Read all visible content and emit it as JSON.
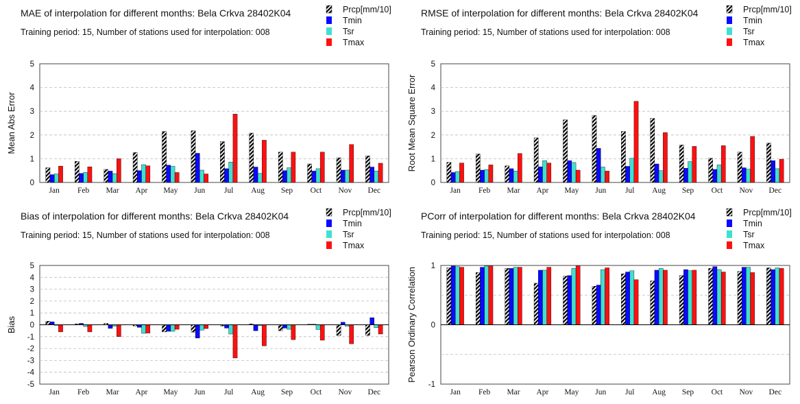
{
  "colors": {
    "Prcp[mm/10]": "hatch",
    "Tmin": "#0a0aff",
    "Tsr": "#40e0d0",
    "Tmax": "#ff1010"
  },
  "chart_data": [
    {
      "type": "bar",
      "title": "MAE of interpolation for different months: Bela Crkva  28402K04",
      "subtitle": "Training period: 15, Number of stations used for interpolation: 008",
      "ylabel": "Mean Abs Error",
      "ylim": [
        0,
        5
      ],
      "yticks": [
        "0",
        "1",
        "2",
        "3",
        "4",
        "5"
      ],
      "grid": true,
      "legend": "top-right",
      "categories": [
        "Jan",
        "Feb",
        "Mar",
        "Apr",
        "May",
        "Jun",
        "Jul",
        "Aug",
        "Sep",
        "Oct",
        "Nov",
        "Dec"
      ],
      "series": [
        {
          "name": "Prcp[mm/10]",
          "values": [
            0.62,
            0.89,
            0.55,
            1.26,
            2.15,
            2.18,
            1.72,
            2.08,
            1.28,
            0.78,
            1.04,
            1.12
          ]
        },
        {
          "name": "Tmin",
          "values": [
            0.33,
            0.38,
            0.48,
            0.5,
            0.73,
            1.23,
            0.58,
            0.65,
            0.5,
            0.48,
            0.52,
            0.65
          ]
        },
        {
          "name": "Tsr",
          "values": [
            0.36,
            0.42,
            0.37,
            0.75,
            0.68,
            0.52,
            0.86,
            0.38,
            0.62,
            0.58,
            0.52,
            0.48
          ]
        },
        {
          "name": "Tmax",
          "values": [
            0.69,
            0.66,
            1.0,
            0.7,
            0.42,
            0.36,
            2.88,
            1.78,
            1.28,
            1.28,
            1.6,
            0.81
          ]
        }
      ]
    },
    {
      "type": "bar",
      "title": "RMSE of interpolation for different months: Bela Crkva  28402K04",
      "subtitle": "Training period: 15, Number of stations used for interpolation: 008",
      "ylabel": "Root Mean Square Error",
      "ylim": [
        0,
        5
      ],
      "yticks": [
        "0",
        "1",
        "2",
        "3",
        "4",
        "5"
      ],
      "grid": true,
      "legend": "top-right",
      "categories": [
        "Jan",
        "Feb",
        "Mar",
        "Apr",
        "May",
        "Jun",
        "Jul",
        "Aug",
        "Sep",
        "Oct",
        "Nov",
        "Dec"
      ],
      "series": [
        {
          "name": "Prcp[mm/10]",
          "values": [
            0.85,
            1.2,
            0.7,
            1.88,
            2.64,
            2.82,
            2.15,
            2.7,
            1.58,
            1.02,
            1.28,
            1.66
          ]
        },
        {
          "name": "Tmin",
          "values": [
            0.42,
            0.52,
            0.58,
            0.66,
            0.92,
            1.44,
            0.68,
            0.78,
            0.6,
            0.55,
            0.62,
            0.92
          ]
        },
        {
          "name": "Tsr",
          "values": [
            0.46,
            0.54,
            0.48,
            0.92,
            0.84,
            0.65,
            1.02,
            0.5,
            0.88,
            0.74,
            0.56,
            0.58
          ]
        },
        {
          "name": "Tmax",
          "values": [
            0.82,
            0.74,
            1.22,
            0.82,
            0.52,
            0.48,
            3.42,
            2.1,
            1.52,
            1.55,
            1.94,
            0.98
          ]
        }
      ]
    },
    {
      "type": "bar",
      "title": "Bias of interpolation for different months: Bela Crkva  28402K04",
      "subtitle": "Training period: 15, Number of stations used for interpolation: 008",
      "ylabel": "Bias",
      "ylim": [
        -5,
        5
      ],
      "yticks": [
        "-5",
        "-4",
        "-3",
        "-2",
        "-1",
        "0",
        "1",
        "2",
        "3",
        "4",
        "5"
      ],
      "grid": true,
      "legend": "top-right",
      "categories": [
        "Jan",
        "Feb",
        "Mar",
        "Apr",
        "May",
        "Jun",
        "Jul",
        "Aug",
        "Sep",
        "Oct",
        "Nov",
        "Dec"
      ],
      "series": [
        {
          "name": "Prcp[mm/10]",
          "values": [
            0.3,
            0.08,
            0.12,
            -0.1,
            -0.6,
            -0.62,
            -0.1,
            0.08,
            -0.5,
            0.05,
            -0.9,
            -0.9
          ]
        },
        {
          "name": "Tmin",
          "values": [
            0.25,
            0.12,
            -0.3,
            -0.22,
            -0.55,
            -1.12,
            -0.28,
            -0.5,
            -0.28,
            0.05,
            0.22,
            0.6
          ]
        },
        {
          "name": "Tsr",
          "values": [
            -0.05,
            -0.15,
            -0.12,
            -0.72,
            -0.55,
            -0.45,
            -0.78,
            -0.08,
            -0.38,
            -0.4,
            -0.12,
            -0.25
          ]
        },
        {
          "name": "Tmax",
          "values": [
            -0.6,
            -0.6,
            -1.0,
            -0.7,
            -0.38,
            -0.32,
            -2.8,
            -1.78,
            -1.25,
            -1.3,
            -1.6,
            -0.78
          ]
        }
      ]
    },
    {
      "type": "bar",
      "title": "PCorr of interpolation for different months: Bela Crkva  28402K04",
      "subtitle": "Training period: 15, Number of stations used for interpolation: 008",
      "ylabel": "Pearson Ordinary Correlation",
      "ylim": [
        -1,
        1
      ],
      "yticks": [
        "-1",
        "",
        "0",
        "",
        "1"
      ],
      "grid": true,
      "legend": "top-right",
      "categories": [
        "Jan",
        "Feb",
        "Mar",
        "Apr",
        "May",
        "Jun",
        "Jul",
        "Aug",
        "Sep",
        "Oct",
        "Nov",
        "Dec"
      ],
      "series": [
        {
          "name": "Prcp[mm/10]",
          "values": [
            0.96,
            0.88,
            0.95,
            0.7,
            0.82,
            0.65,
            0.86,
            0.74,
            0.83,
            0.95,
            0.9,
            0.96
          ]
        },
        {
          "name": "Tmin",
          "values": [
            0.99,
            0.97,
            0.95,
            0.92,
            0.83,
            0.67,
            0.89,
            0.92,
            0.93,
            0.98,
            0.97,
            0.93
          ]
        },
        {
          "name": "Tsr",
          "values": [
            0.98,
            0.99,
            0.97,
            0.92,
            0.95,
            0.93,
            0.91,
            0.95,
            0.91,
            0.93,
            0.97,
            0.96
          ]
        },
        {
          "name": "Tmax",
          "values": [
            0.97,
            0.99,
            0.97,
            0.97,
            0.99,
            0.96,
            0.76,
            0.92,
            0.92,
            0.89,
            0.88,
            0.95
          ]
        }
      ]
    }
  ]
}
